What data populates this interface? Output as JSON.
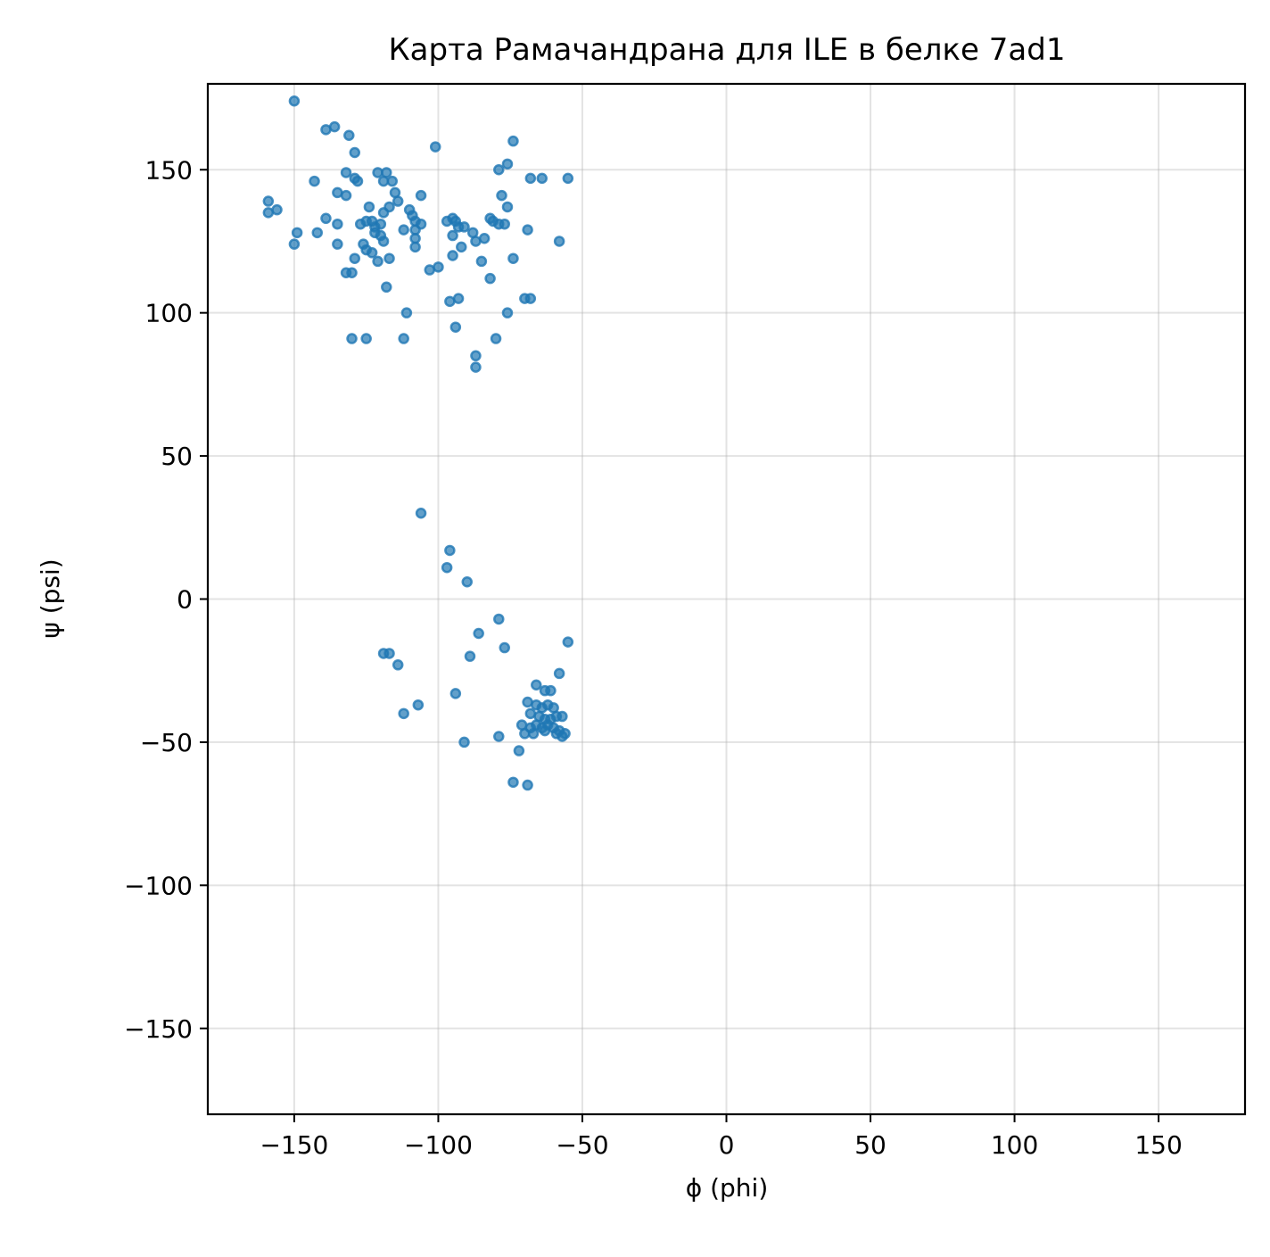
{
  "chart_data": {
    "type": "scatter",
    "title": "Карта Рамачандрана для ILE в белке 7ad1",
    "xlabel": "ϕ (phi)",
    "ylabel": "ψ (psi)",
    "xlim": [
      -180,
      180
    ],
    "ylim": [
      -180,
      180
    ],
    "xticks": [
      -150,
      -100,
      -50,
      0,
      50,
      100,
      150
    ],
    "yticks": [
      -150,
      -100,
      -50,
      0,
      50,
      100,
      150
    ],
    "xtick_labels": [
      "−150",
      "−100",
      "−50",
      "0",
      "50",
      "100",
      "150"
    ],
    "ytick_labels": [
      "−150",
      "−100",
      "−50",
      "0",
      "50",
      "100",
      "150"
    ],
    "grid": true,
    "color": "#1f77b4",
    "points": [
      [
        -150,
        174
      ],
      [
        -139,
        164
      ],
      [
        -136,
        165
      ],
      [
        -131,
        162
      ],
      [
        -74,
        160
      ],
      [
        -101,
        158
      ],
      [
        -129,
        156
      ],
      [
        -76,
        152
      ],
      [
        -79,
        150
      ],
      [
        -121,
        149
      ],
      [
        -118,
        149
      ],
      [
        -132,
        149
      ],
      [
        -129,
        147
      ],
      [
        -128,
        146
      ],
      [
        -119,
        146
      ],
      [
        -116,
        146
      ],
      [
        -68,
        147
      ],
      [
        -64,
        147
      ],
      [
        -55,
        147
      ],
      [
        -143,
        146
      ],
      [
        -135,
        142
      ],
      [
        -132,
        141
      ],
      [
        -115,
        142
      ],
      [
        -114,
        139
      ],
      [
        -106,
        141
      ],
      [
        -78,
        141
      ],
      [
        -76,
        137
      ],
      [
        -159,
        139
      ],
      [
        -159,
        135
      ],
      [
        -156,
        136
      ],
      [
        -139,
        133
      ],
      [
        -135,
        131
      ],
      [
        -127,
        131
      ],
      [
        -125,
        132
      ],
      [
        -123,
        132
      ],
      [
        -122,
        130
      ],
      [
        -120,
        131
      ],
      [
        -117,
        137
      ],
      [
        -119,
        135
      ],
      [
        -110,
        136
      ],
      [
        -109,
        134
      ],
      [
        -108,
        132
      ],
      [
        -106,
        131
      ],
      [
        -124,
        137
      ],
      [
        -97,
        132
      ],
      [
        -95,
        133
      ],
      [
        -94,
        132
      ],
      [
        -93,
        130
      ],
      [
        -91,
        130
      ],
      [
        -82,
        133
      ],
      [
        -81,
        132
      ],
      [
        -79,
        131
      ],
      [
        -77,
        131
      ],
      [
        -122,
        128
      ],
      [
        -120,
        127
      ],
      [
        -119,
        125
      ],
      [
        -112,
        129
      ],
      [
        -108,
        129
      ],
      [
        -108,
        126
      ],
      [
        -108,
        123
      ],
      [
        -95,
        127
      ],
      [
        -92,
        123
      ],
      [
        -88,
        128
      ],
      [
        -87,
        125
      ],
      [
        -84,
        126
      ],
      [
        -69,
        129
      ],
      [
        -58,
        125
      ],
      [
        -149,
        128
      ],
      [
        -150,
        124
      ],
      [
        -142,
        128
      ],
      [
        -135,
        124
      ],
      [
        -126,
        124
      ],
      [
        -125,
        122
      ],
      [
        -123,
        121
      ],
      [
        -121,
        118
      ],
      [
        -117,
        119
      ],
      [
        -129,
        119
      ],
      [
        -95,
        120
      ],
      [
        -85,
        118
      ],
      [
        -74,
        119
      ],
      [
        -132,
        114
      ],
      [
        -130,
        114
      ],
      [
        -103,
        115
      ],
      [
        -100,
        116
      ],
      [
        -82,
        112
      ],
      [
        -118,
        109
      ],
      [
        -96,
        104
      ],
      [
        -93,
        105
      ],
      [
        -70,
        105
      ],
      [
        -68,
        105
      ],
      [
        -111,
        100
      ],
      [
        -76,
        100
      ],
      [
        -130,
        91
      ],
      [
        -125,
        91
      ],
      [
        -112,
        91
      ],
      [
        -94,
        95
      ],
      [
        -80,
        91
      ],
      [
        -87,
        85
      ],
      [
        -87,
        81
      ],
      [
        -106,
        30
      ],
      [
        -96,
        17
      ],
      [
        -97,
        11
      ],
      [
        -90,
        6
      ],
      [
        -79,
        -7
      ],
      [
        -86,
        -12
      ],
      [
        -55,
        -15
      ],
      [
        -77,
        -17
      ],
      [
        -58,
        -26
      ],
      [
        -89,
        -20
      ],
      [
        -119,
        -19
      ],
      [
        -117,
        -19
      ],
      [
        -114,
        -23
      ],
      [
        -107,
        -37
      ],
      [
        -112,
        -40
      ],
      [
        -94,
        -33
      ],
      [
        -66,
        -30
      ],
      [
        -63,
        -32
      ],
      [
        -61,
        -32
      ],
      [
        -69,
        -36
      ],
      [
        -66,
        -37
      ],
      [
        -64,
        -38
      ],
      [
        -62,
        -37
      ],
      [
        -60,
        -38
      ],
      [
        -68,
        -40
      ],
      [
        -65,
        -41
      ],
      [
        -63,
        -42
      ],
      [
        -61,
        -42
      ],
      [
        -59,
        -41
      ],
      [
        -57,
        -41
      ],
      [
        -71,
        -44
      ],
      [
        -68,
        -45
      ],
      [
        -66,
        -44
      ],
      [
        -64,
        -45
      ],
      [
        -62,
        -44
      ],
      [
        -60,
        -45
      ],
      [
        -58,
        -46
      ],
      [
        -56,
        -47
      ],
      [
        -70,
        -47
      ],
      [
        -67,
        -47
      ],
      [
        -63,
        -46
      ],
      [
        -59,
        -47
      ],
      [
        -57,
        -48
      ],
      [
        -79,
        -48
      ],
      [
        -91,
        -50
      ],
      [
        -72,
        -53
      ],
      [
        -74,
        -64
      ],
      [
        -69,
        -65
      ]
    ]
  }
}
